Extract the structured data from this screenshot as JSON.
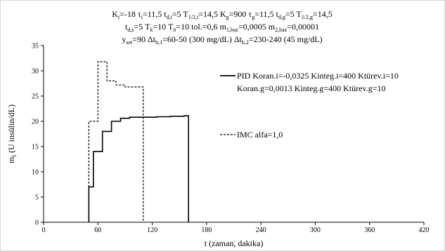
{
  "chart_data": {
    "type": "line",
    "title_lines": [
      [
        {
          "t": "K"
        },
        {
          "t": "i",
          "sub": true
        },
        {
          "t": "=-18  τ"
        },
        {
          "t": "i",
          "sub": true
        },
        {
          "t": "=11,5  t"
        },
        {
          "t": "d,i",
          "sub": true
        },
        {
          "t": "=5  T"
        },
        {
          "t": "1/2,i",
          "sub": true
        },
        {
          "t": "=14,5  K"
        },
        {
          "t": "g",
          "sub": true
        },
        {
          "t": "=900  τ"
        },
        {
          "t": "g",
          "sub": true
        },
        {
          "t": "=11,5  t"
        },
        {
          "t": "d,g",
          "sub": true
        },
        {
          "t": "=5  T"
        },
        {
          "t": "1/2,g",
          "sub": true
        },
        {
          "t": "=14,5"
        }
      ],
      [
        {
          "t": "t"
        },
        {
          "t": "d,s",
          "sub": true
        },
        {
          "t": "=5  T"
        },
        {
          "t": "k",
          "sub": true
        },
        {
          "t": "=10  T"
        },
        {
          "t": "ö",
          "sub": true
        },
        {
          "t": "=10  tol.=0,6  m"
        },
        {
          "t": "1,baz",
          "sub": true
        },
        {
          "t": "=0,0005  m"
        },
        {
          "t": "2,baz",
          "sub": true
        },
        {
          "t": "=0,00001"
        }
      ],
      [
        {
          "t": "y"
        },
        {
          "t": "set",
          "sub": true
        },
        {
          "t": "=90  Δt"
        },
        {
          "t": "b,1",
          "sub": true
        },
        {
          "t": "=60-50 (300 mg/dL)  Δt"
        },
        {
          "t": "b,2",
          "sub": true
        },
        {
          "t": "=230-240 (45 mg/dL)"
        }
      ]
    ],
    "xlabel": "t (zaman,  dakika)",
    "ylabel_main": "m",
    "ylabel_sub": "I",
    "ylabel_rest": " (U insülin/dL)",
    "xlim": [
      0,
      420
    ],
    "ylim": [
      0,
      35
    ],
    "xticks": [
      0,
      60,
      120,
      180,
      240,
      300,
      360,
      420
    ],
    "yticks": [
      0,
      5,
      10,
      15,
      20,
      25,
      30,
      35
    ],
    "grid": false,
    "legend_position": "right",
    "series": [
      {
        "legend_lines": [
          "PID Koran.i=-0,0325 Kinteg.i=400 Ktürev.i=10",
          "Koran.g=0,0013 Kinteg.g=400 Ktürev.g=10"
        ],
        "style": "solid",
        "color": "#000000",
        "x": [
          50,
          50,
          55,
          55,
          65,
          65,
          75,
          75,
          85,
          85,
          95,
          95,
          125,
          125,
          140,
          140,
          155,
          155,
          160,
          160
        ],
        "y": [
          0,
          7,
          7,
          14,
          14,
          18,
          18,
          20,
          20,
          20.6,
          20.6,
          20.8,
          20.8,
          20.9,
          20.9,
          21.0,
          21.0,
          21.1,
          21.1,
          0
        ]
      },
      {
        "legend_lines": [
          "IMC alfa=1,0"
        ],
        "style": "dashed",
        "color": "#000000",
        "x": [
          50,
          50,
          60,
          60,
          70,
          70,
          80,
          80,
          90,
          90,
          110,
          110
        ],
        "y": [
          0,
          20,
          20,
          31.8,
          31.8,
          28,
          28,
          27.2,
          27.2,
          26.8,
          26.8,
          0
        ]
      }
    ]
  }
}
